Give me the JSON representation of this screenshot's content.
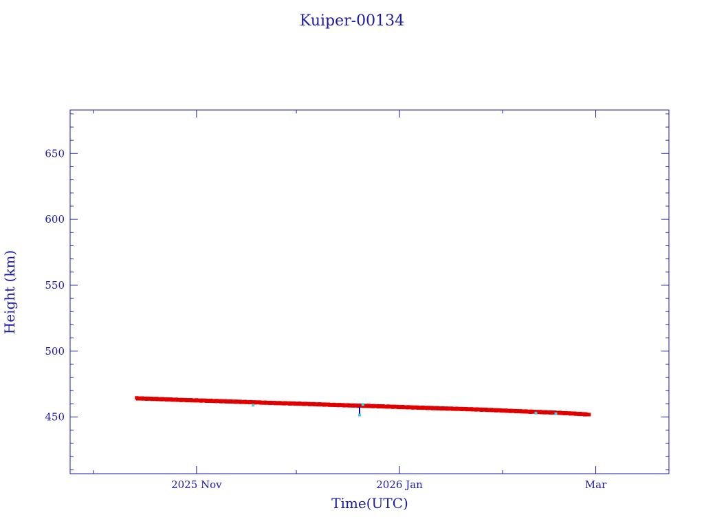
{
  "chart_data": {
    "type": "scatter",
    "title": "Kuiper-00134",
    "xlabel": "Time(UTC)",
    "ylabel": "Height (km)",
    "x_ticks": [
      {
        "label": "2025 Nov",
        "date": "2025-11-01"
      },
      {
        "label": "2026 Jan",
        "date": "2026-01-01"
      },
      {
        "label": "Mar",
        "date": "2026-03-01"
      }
    ],
    "xlim": [
      "2025-09-24",
      "2026-03-23"
    ],
    "ylim": [
      407,
      683
    ],
    "y_ticks": [
      450,
      500,
      550,
      600,
      650
    ],
    "grid": false,
    "colors": {
      "axis": "#1a1aa6",
      "main_series": "#e00000",
      "outlier_series": "#40d0e0",
      "outlier_line": "#0000c0"
    },
    "series": [
      {
        "color": "#e00000",
        "points": [
          [
            "2025-10-14",
            464.2
          ],
          [
            "2025-10-21",
            463.6
          ],
          [
            "2025-10-28",
            462.9
          ],
          [
            "2025-11-04",
            462.4
          ],
          [
            "2025-11-11",
            461.8
          ],
          [
            "2025-11-18",
            461.2
          ],
          [
            "2025-11-25",
            460.6
          ],
          [
            "2025-12-02",
            460.1
          ],
          [
            "2025-12-09",
            459.5
          ],
          [
            "2025-12-16",
            458.9
          ],
          [
            "2025-12-23",
            458.4
          ],
          [
            "2025-12-30",
            457.8
          ],
          [
            "2026-01-06",
            457.2
          ],
          [
            "2026-01-13",
            456.6
          ],
          [
            "2026-01-20",
            456.1
          ],
          [
            "2026-01-27",
            455.5
          ],
          [
            "2026-02-03",
            454.7
          ],
          [
            "2026-02-10",
            454.0
          ],
          [
            "2026-02-17",
            453.3
          ],
          [
            "2026-02-24",
            452.4
          ],
          [
            "2026-02-27",
            451.9
          ]
        ]
      },
      {
        "color": "#40d0e0",
        "points": [
          [
            "2025-11-18",
            459.0
          ],
          [
            "2025-12-20",
            451.5
          ],
          [
            "2025-12-21",
            459.5
          ],
          [
            "2026-02-11",
            453.0
          ],
          [
            "2026-02-17",
            452.5
          ]
        ]
      }
    ]
  }
}
